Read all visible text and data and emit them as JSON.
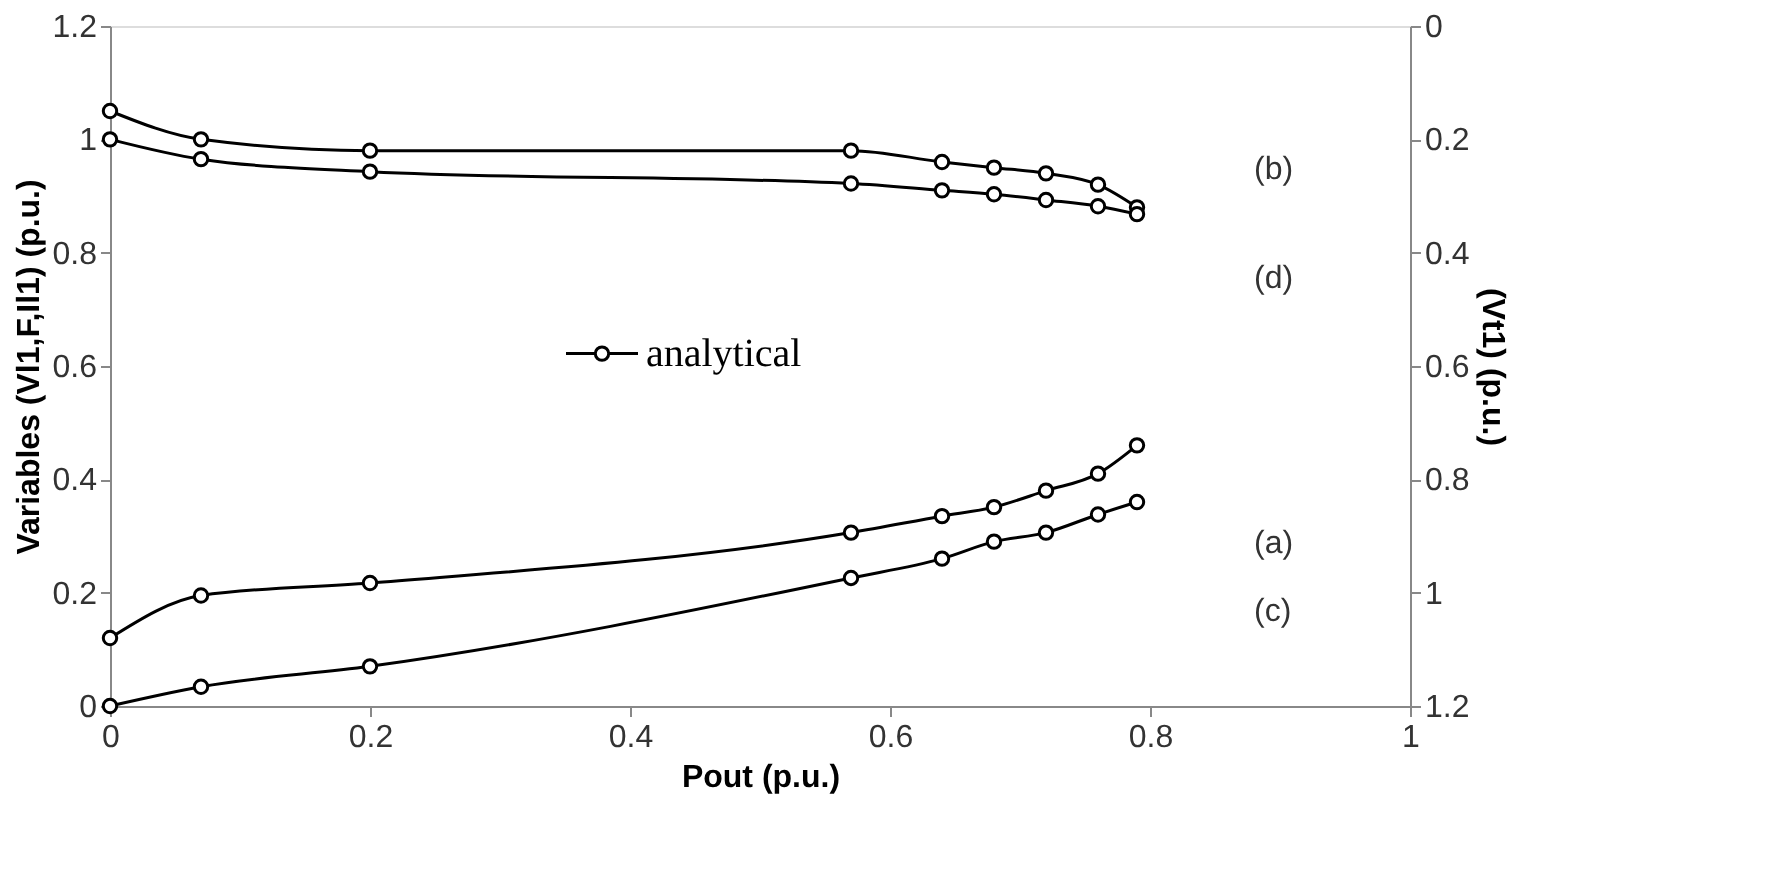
{
  "chart_data": {
    "type": "line",
    "xlabel": "Pout (p.u.)",
    "ylabel": "Variables (Vl1,F,Il1) (p.u.)",
    "y2label": "(Vt1) (p.u.)",
    "x": [
      0,
      0.07,
      0.2,
      0.57,
      0.64,
      0.68,
      0.72,
      0.76,
      0.79
    ],
    "series": [
      {
        "name": "analytical",
        "color": "#000000",
        "values": [
          1.05,
          1.0,
          0.98,
          0.98,
          0.96,
          0.95,
          0.94,
          0.92,
          0.88
        ]
      },
      {
        "color": "#000000",
        "values": [
          1.0,
          0.965,
          0.943,
          0.922,
          0.91,
          0.903,
          0.893,
          0.882,
          0.868
        ]
      },
      {
        "color": "#000000",
        "values": [
          0.12,
          0.195,
          0.217,
          0.306,
          0.335,
          0.351,
          0.38,
          0.41,
          0.46
        ]
      },
      {
        "color": "#000000",
        "values": [
          0,
          0.034,
          0.07,
          0.226,
          0.26,
          0.29,
          0.306,
          0.338,
          0.36
        ]
      }
    ],
    "annotations": [
      "(b)",
      "(d)",
      "(a)",
      "(c)"
    ],
    "xlim": [
      0,
      1
    ],
    "xticks": [
      0,
      0.2,
      0.4,
      0.6,
      0.8,
      1
    ],
    "ylim": [
      0,
      1.2
    ],
    "yticks": [
      0,
      0.2,
      0.4,
      0.6,
      0.8,
      1,
      1.2
    ],
    "y2lim": [
      1.2,
      0
    ],
    "y2ticks": [
      0,
      0.2,
      0.4,
      0.6,
      0.8,
      1,
      1.2
    ],
    "marker": "circle",
    "line_style": "solid",
    "grid": false,
    "legend": "top"
  }
}
